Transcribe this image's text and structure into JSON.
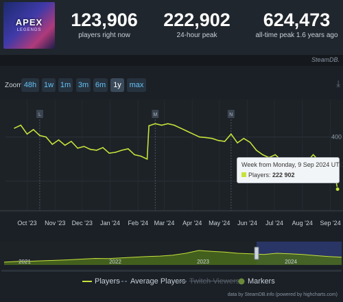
{
  "header": {
    "logo_text": "APEX",
    "logo_sub": "LEGENDS",
    "stats": [
      {
        "value": "123,906",
        "label": "players right now"
      },
      {
        "value": "222,902",
        "label": "24-hour peak"
      },
      {
        "value": "624,473",
        "label": "all-time peak 1.6 years ago"
      }
    ],
    "source_label": "SteamDB."
  },
  "zoom": {
    "label": "Zoom",
    "buttons": [
      "48h",
      "1w",
      "1m",
      "3m",
      "6m",
      "1y",
      "max"
    ],
    "active": "1y"
  },
  "chart_data": {
    "type": "line",
    "x_ticks": [
      "Oct '23",
      "Nov '23",
      "Dec '23",
      "Jan '24",
      "Feb '24",
      "Mar '24",
      "Apr '24",
      "May '24",
      "Jun '24",
      "Jul '24",
      "Aug '24",
      "Sep '24"
    ],
    "y_visible_tick": "400",
    "series": [
      {
        "name": "Players",
        "color": "#c7e33b",
        "points": [
          [
            "2023-09-17",
            430
          ],
          [
            "2023-09-24",
            440
          ],
          [
            "2023-10-01",
            410
          ],
          [
            "2023-10-08",
            425
          ],
          [
            "2023-10-15",
            405
          ],
          [
            "2023-10-22",
            400
          ],
          [
            "2023-10-29",
            375
          ],
          [
            "2023-11-05",
            390
          ],
          [
            "2023-11-12",
            372
          ],
          [
            "2023-11-19",
            385
          ],
          [
            "2023-11-26",
            362
          ],
          [
            "2023-12-03",
            368
          ],
          [
            "2023-12-10",
            358
          ],
          [
            "2023-12-17",
            355
          ],
          [
            "2023-12-24",
            364
          ],
          [
            "2023-12-31",
            345
          ],
          [
            "2024-01-07",
            348
          ],
          [
            "2024-01-14",
            355
          ],
          [
            "2024-01-21",
            360
          ],
          [
            "2024-01-28",
            340
          ],
          [
            "2024-02-04",
            335
          ],
          [
            "2024-02-11",
            325
          ],
          [
            "2024-02-13",
            438
          ],
          [
            "2024-02-20",
            445
          ],
          [
            "2024-02-27",
            440
          ],
          [
            "2024-03-05",
            445
          ],
          [
            "2024-03-12",
            440
          ],
          [
            "2024-03-19",
            430
          ],
          [
            "2024-03-26",
            420
          ],
          [
            "2024-04-02",
            410
          ],
          [
            "2024-04-09",
            400
          ],
          [
            "2024-04-16",
            398
          ],
          [
            "2024-04-23",
            395
          ],
          [
            "2024-04-30",
            388
          ],
          [
            "2024-05-07",
            385
          ],
          [
            "2024-05-14",
            410
          ],
          [
            "2024-05-21",
            380
          ],
          [
            "2024-05-28",
            395
          ],
          [
            "2024-06-04",
            382
          ],
          [
            "2024-06-11",
            355
          ],
          [
            "2024-06-18",
            340
          ],
          [
            "2024-06-25",
            330
          ],
          [
            "2024-07-02",
            340
          ],
          [
            "2024-07-09",
            320
          ],
          [
            "2024-07-16",
            322
          ],
          [
            "2024-07-23",
            318
          ],
          [
            "2024-07-30",
            312
          ],
          [
            "2024-08-06",
            316
          ],
          [
            "2024-08-13",
            340
          ],
          [
            "2024-08-20",
            318
          ],
          [
            "2024-08-27",
            322
          ],
          [
            "2024-09-03",
            318
          ],
          [
            "2024-09-09",
            223
          ]
        ]
      },
      {
        "name": "Average Players",
        "color": "#8ea0b5"
      },
      {
        "name": "Twitch Viewers",
        "color": "#6a5e90"
      },
      {
        "name": "Markers",
        "color": "#6a8a3a"
      }
    ],
    "markers": [
      {
        "date": "2023-10-15",
        "label": "L"
      },
      {
        "date": "2024-02-20",
        "label": "M"
      },
      {
        "date": "2024-05-14",
        "label": "N"
      }
    ],
    "navigator": {
      "year_labels": [
        "2021",
        "2022",
        "2023",
        "2024"
      ],
      "values": [
        0.12,
        0.15,
        0.16,
        0.18,
        0.2,
        0.22,
        0.25,
        0.28,
        0.27,
        0.3,
        0.33,
        0.36,
        0.38,
        0.42,
        0.5,
        0.62,
        0.58,
        0.55,
        0.5,
        0.48,
        0.45,
        0.5,
        0.48,
        0.45,
        0.4,
        0.36,
        0.33
      ]
    },
    "tooltip": {
      "title": "Week from Monday, 9 Sep 2024 UTC",
      "series": "Players",
      "value": "222 902"
    },
    "legend": [
      "Players",
      "Average Players",
      "Twitch Viewers",
      "Markers"
    ],
    "credits": "data by SteamDB.info (powered by highcharts.com)"
  }
}
